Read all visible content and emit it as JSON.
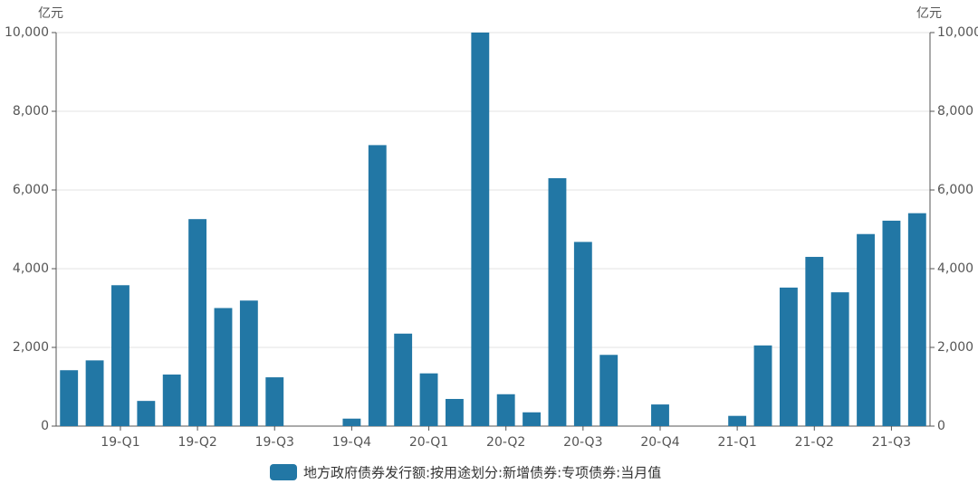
{
  "chart_data": {
    "type": "bar",
    "y_label": "亿元",
    "y2_label": "亿元",
    "categories": [
      null,
      null,
      "19-Q1",
      null,
      null,
      "19-Q2",
      null,
      null,
      "19-Q3",
      null,
      null,
      "19-Q4",
      null,
      null,
      "20-Q1",
      null,
      null,
      "20-Q2",
      null,
      null,
      "20-Q3",
      null,
      null,
      "20-Q4",
      null,
      null,
      "21-Q1",
      null,
      null,
      "21-Q2",
      null,
      null,
      "21-Q3",
      null
    ],
    "series": [
      {
        "name": "地方政府债券发行额:按用途划分:新增债券:专项债券:当月值",
        "color": "#2277a5",
        "values": [
          1420,
          1670,
          3580,
          640,
          1310,
          5260,
          3000,
          3190,
          1240,
          0,
          0,
          190,
          7140,
          2350,
          1340,
          690,
          10000,
          810,
          350,
          6300,
          4680,
          1810,
          0,
          550,
          0,
          0,
          260,
          2050,
          3520,
          4300,
          3400,
          4880,
          5220,
          5410
        ]
      }
    ],
    "ylim": [
      0,
      10000
    ],
    "yticks": [
      0,
      {
        "value": 2000,
        "label": "2,000"
      },
      {
        "value": 4000,
        "label": "4,000"
      },
      {
        "value": 6000,
        "label": "6,000"
      },
      {
        "value": 8000,
        "label": "8,000"
      },
      {
        "value": 10000,
        "label": "10,000"
      }
    ],
    "y2lim": [
      0,
      10000
    ],
    "y2ticks": [
      0,
      {
        "value": 2000,
        "label": "2,000"
      },
      {
        "value": 4000,
        "label": "4,000"
      },
      {
        "value": 6000,
        "label": "6,000"
      },
      {
        "value": 8000,
        "label": "8,000"
      },
      {
        "value": 10000,
        "label": "10,000"
      }
    ],
    "grid": true,
    "legend": "bottom"
  }
}
